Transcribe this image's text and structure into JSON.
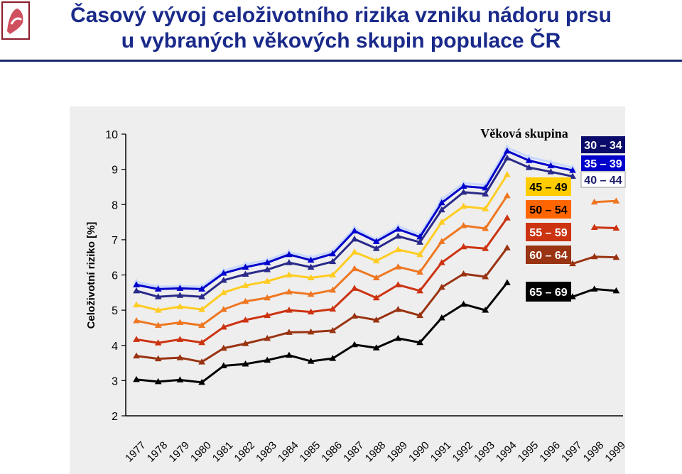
{
  "header": {
    "title_line1": "Časový vývoj celoživotního rizika vzniku nádoru prsu",
    "title_line2": "u vybraných věkových skupin populace ČR"
  },
  "chart_data": {
    "type": "line",
    "title": "Časový vývoj celoživotního rizika vzniku nádoru prsu u vybraných věkových skupin populace ČR",
    "ylabel": "Celoživotní riziko [%]",
    "xlabel": "",
    "ylim": [
      2,
      10
    ],
    "yticks": [
      "2",
      "3",
      "4",
      "5",
      "6",
      "7",
      "8",
      "9",
      "10"
    ],
    "legend_title": "Věková skupina",
    "categories": [
      "1977",
      "1978",
      "1979",
      "1980",
      "1981",
      "1982",
      "1983",
      "1984",
      "1985",
      "1986",
      "1987",
      "1988",
      "1989",
      "1990",
      "1991",
      "1992",
      "1993",
      "1994",
      "1995",
      "1996",
      "1997",
      "1998",
      "1999"
    ],
    "series": [
      {
        "name": "30 – 34",
        "color": "#c8d8ff",
        "label_bg": "#0a0a6a",
        "label_fg": "#ffffff",
        "values": [
          5.8,
          5.67,
          5.68,
          5.67,
          6.12,
          6.3,
          6.42,
          6.65,
          6.5,
          6.67,
          7.33,
          7.0,
          7.38,
          7.15,
          8.15,
          8.6,
          8.56,
          9.62,
          9.35,
          9.2,
          9.05,
          null,
          null
        ]
      },
      {
        "name": "35 – 39",
        "color": "#0000cc",
        "label_bg": "#0000cc",
        "label_fg": "#ffffff",
        "values": [
          5.72,
          5.6,
          5.62,
          5.6,
          6.05,
          6.22,
          6.35,
          6.58,
          6.42,
          6.6,
          7.25,
          6.95,
          7.3,
          7.08,
          8.05,
          8.52,
          8.47,
          9.52,
          9.25,
          9.1,
          8.97,
          null,
          null
        ]
      },
      {
        "name": "40 – 44",
        "color": "#2a2a8a",
        "label_bg": "#ffffff",
        "label_fg": "#1a1a6a",
        "values": [
          5.55,
          5.38,
          5.42,
          5.38,
          5.85,
          6.02,
          6.15,
          6.35,
          6.22,
          6.38,
          7.02,
          6.75,
          7.1,
          6.93,
          7.85,
          8.35,
          8.3,
          9.32,
          9.05,
          8.93,
          8.8,
          null,
          null
        ]
      },
      {
        "name": "45 – 49",
        "color": "#ffcc22",
        "label_bg": "#ffcc00",
        "label_fg": "#000000",
        "values": [
          5.15,
          5.0,
          5.1,
          5.02,
          5.5,
          5.7,
          5.82,
          6.0,
          5.92,
          6.0,
          6.65,
          6.4,
          6.72,
          6.58,
          7.5,
          7.95,
          7.88,
          8.85,
          null,
          null,
          null,
          null,
          null
        ]
      },
      {
        "name": "50 – 54",
        "color": "#ee7722",
        "label_bg": "#ff6600",
        "label_fg": "#000000",
        "values": [
          4.7,
          4.57,
          4.65,
          4.57,
          5.02,
          5.25,
          5.35,
          5.52,
          5.45,
          5.57,
          6.18,
          5.92,
          6.23,
          6.08,
          6.95,
          7.4,
          7.32,
          8.25,
          null,
          null,
          null,
          8.07,
          8.1
        ]
      },
      {
        "name": "55 – 59",
        "color": "#cc3311",
        "label_bg": "#cc3311",
        "label_fg": "#ffffff",
        "values": [
          4.17,
          4.07,
          4.17,
          4.08,
          4.52,
          4.72,
          4.85,
          5.0,
          4.95,
          5.03,
          5.62,
          5.35,
          5.72,
          5.55,
          6.35,
          6.8,
          6.75,
          7.62,
          null,
          null,
          null,
          7.35,
          7.33
        ]
      },
      {
        "name": "60 – 64",
        "color": "#993311",
        "label_bg": "#993311",
        "label_fg": "#ffffff",
        "values": [
          3.7,
          3.62,
          3.65,
          3.53,
          3.92,
          4.05,
          4.2,
          4.37,
          4.38,
          4.42,
          4.83,
          4.72,
          5.02,
          4.85,
          5.65,
          6.03,
          5.95,
          6.77,
          null,
          null,
          6.32,
          6.52,
          6.5
        ]
      },
      {
        "name": "65 – 69",
        "color": "#000000",
        "label_bg": "#000000",
        "label_fg": "#ffffff",
        "values": [
          3.03,
          2.97,
          3.02,
          2.95,
          3.42,
          3.47,
          3.58,
          3.72,
          3.55,
          3.63,
          4.02,
          3.93,
          4.2,
          4.08,
          4.78,
          5.17,
          5.0,
          5.78,
          null,
          null,
          5.38,
          5.6,
          5.55
        ]
      }
    ],
    "grid": false,
    "legend_position": "inline-right"
  }
}
